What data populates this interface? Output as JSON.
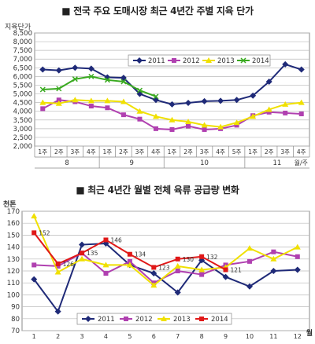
{
  "chart_data": [
    {
      "type": "line",
      "title": "■ 전국 주요 도매시장 최근 4년간 주별 지육 단가",
      "ylabel": "지육단가",
      "ylim": [
        2000,
        8500
      ],
      "yticks": [
        2000,
        2500,
        3000,
        3500,
        4000,
        4500,
        5000,
        5500,
        6000,
        6500,
        7000,
        7500,
        8000,
        8500
      ],
      "ytick_labels": [
        "2,000",
        "2,500",
        "3,000",
        "3,500",
        "4,000",
        "4,500",
        "5,000",
        "5,500",
        "6,000",
        "6,500",
        "7,000",
        "7,500",
        "8,000",
        "8,500"
      ],
      "grid": true,
      "legend_position": "top-right",
      "week_labels": [
        "1주",
        "2주",
        "3주",
        "4주",
        "1주",
        "2주",
        "3주",
        "4주",
        "1주",
        "2주",
        "3주",
        "4주",
        "5주",
        "1주",
        "2주",
        "3주",
        "4주"
      ],
      "month_labels": [
        "8",
        "9",
        "10",
        "11"
      ],
      "month_groups": [
        [
          0,
          3
        ],
        [
          4,
          7
        ],
        [
          8,
          12
        ],
        [
          13,
          16
        ]
      ],
      "xaxis_unit": "월/주",
      "series": [
        {
          "name": "2011",
          "color": "#1f2a78",
          "marker": "diamond",
          "values": [
            6400,
            6350,
            6500,
            6450,
            5950,
            5920,
            5000,
            4650,
            4400,
            4480,
            4580,
            4600,
            4650,
            4900,
            5700,
            6700,
            6400
          ]
        },
        {
          "name": "2012",
          "color": "#b040b0",
          "marker": "square",
          "values": [
            4150,
            4650,
            4550,
            4300,
            4200,
            3800,
            3550,
            3000,
            2950,
            3150,
            2950,
            3000,
            3200,
            3750,
            3950,
            3900,
            3850
          ]
        },
        {
          "name": "2013",
          "color": "#f0e000",
          "marker": "triangle",
          "values": [
            4500,
            4450,
            4650,
            4600,
            4600,
            4550,
            4000,
            3700,
            3500,
            3400,
            3200,
            3100,
            3350,
            3700,
            4100,
            4400,
            4500
          ]
        },
        {
          "name": "2014",
          "color": "#3aaa20",
          "marker": "x",
          "values": [
            5250,
            5300,
            5850,
            6000,
            5800,
            5700,
            5200,
            4850,
            null,
            null,
            null,
            null,
            null,
            null,
            null,
            null,
            null
          ]
        }
      ]
    },
    {
      "type": "line",
      "title": "■ 최근 4년간 월별 전체 육류 공급량 변화",
      "ylabel": "천톤",
      "xlabel": "월",
      "ylim": [
        70,
        170
      ],
      "yticks": [
        70,
        80,
        90,
        100,
        110,
        120,
        130,
        140,
        150,
        160,
        170
      ],
      "grid": true,
      "legend_position": "bottom-center",
      "categories": [
        "1",
        "2",
        "3",
        "4",
        "5",
        "6",
        "7",
        "8",
        "9",
        "10",
        "11",
        "12"
      ],
      "series": [
        {
          "name": "2011",
          "color": "#1f2a78",
          "marker": "diamond",
          "values": [
            113,
            86,
            142,
            143,
            125,
            118,
            102,
            129,
            115,
            107,
            120,
            121
          ]
        },
        {
          "name": "2012",
          "color": "#b040b0",
          "marker": "square",
          "values": [
            125,
            124,
            135,
            118,
            128,
            110,
            120,
            117,
            125,
            128,
            136,
            132
          ]
        },
        {
          "name": "2013",
          "color": "#f0e000",
          "marker": "triangle",
          "values": [
            166,
            119,
            130,
            125,
            125,
            108,
            124,
            121,
            123,
            139,
            130,
            140
          ]
        },
        {
          "name": "2014",
          "color": "#e01818",
          "marker": "square",
          "values": [
            152,
            126,
            135,
            146,
            134,
            123,
            130,
            132,
            121,
            null,
            null,
            null
          ]
        }
      ],
      "data_labels": [
        {
          "series": "2014",
          "index": 0,
          "text": "152"
        },
        {
          "series": "2014",
          "index": 1,
          "text": "126"
        },
        {
          "series": "2014",
          "index": 2,
          "text": "135"
        },
        {
          "series": "2014",
          "index": 3,
          "text": "146"
        },
        {
          "series": "2014",
          "index": 4,
          "text": "134"
        },
        {
          "series": "2014",
          "index": 5,
          "text": "123"
        },
        {
          "series": "2014",
          "index": 6,
          "text": "130"
        },
        {
          "series": "2014",
          "index": 7,
          "text": "132"
        },
        {
          "series": "2014",
          "index": 8,
          "text": "121"
        }
      ]
    }
  ]
}
